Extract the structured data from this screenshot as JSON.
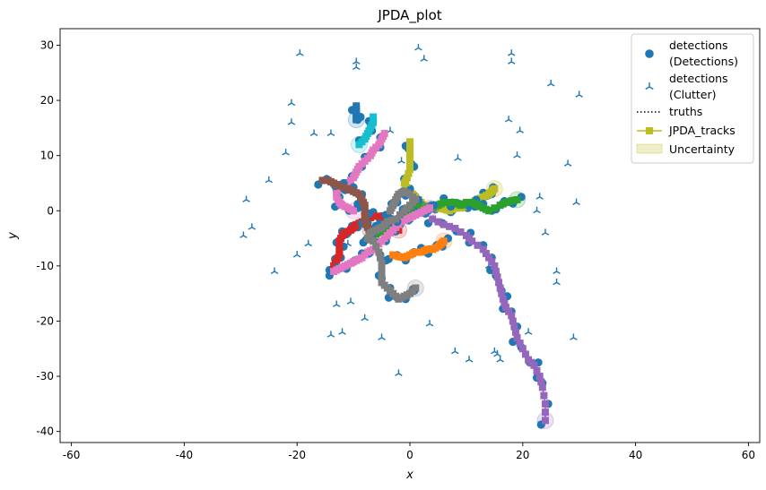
{
  "chart_data": {
    "type": "scatter",
    "title": "JPDA_plot",
    "xlabel": "x",
    "ylabel": "y",
    "xlim": [
      -62,
      62
    ],
    "ylim": [
      -42,
      33
    ],
    "xticks": [
      -60,
      -40,
      -20,
      0,
      20,
      40,
      60
    ],
    "yticks": [
      -40,
      -30,
      -20,
      -10,
      0,
      10,
      20,
      30
    ],
    "grid": false,
    "legend": {
      "placement": "top-right",
      "entries": [
        {
          "label_line1": "detections",
          "label_line2": "(Detections)",
          "marker": "circle",
          "color": "#1f77b4"
        },
        {
          "label_line1": "detections",
          "label_line2": "(Clutter)",
          "marker": "tri-up",
          "color": "#1f77b4"
        },
        {
          "label_line1": "truths",
          "marker": "dotted-line",
          "color": "#000000"
        },
        {
          "label_line1": "JPDA_tracks",
          "marker": "square-line",
          "color": "#bcbd22"
        },
        {
          "label_line1": "Uncertainty",
          "marker": "patch",
          "color": "#bcbd22"
        }
      ]
    },
    "clutter": [
      [
        -19.5,
        28.5
      ],
      [
        -9.5,
        27
      ],
      [
        -9.5,
        26
      ],
      [
        1.5,
        29.5
      ],
      [
        2.5,
        27.5
      ],
      [
        18,
        28.5
      ],
      [
        18,
        27
      ],
      [
        25,
        23
      ],
      [
        30,
        21
      ],
      [
        -21,
        19.5
      ],
      [
        -21,
        16
      ],
      [
        -17,
        14
      ],
      [
        -14,
        14
      ],
      [
        -22,
        10.5
      ],
      [
        -25,
        5.5
      ],
      [
        -29,
        2
      ],
      [
        -28,
        -3
      ],
      [
        -29.5,
        -4.5
      ],
      [
        -20,
        -8
      ],
      [
        -18,
        -6
      ],
      [
        -24,
        -11
      ],
      [
        -11,
        -6
      ],
      [
        -13,
        -17
      ],
      [
        -8,
        -19.5
      ],
      [
        -10.5,
        -16.5
      ],
      [
        -14,
        -22.5
      ],
      [
        -12,
        -22
      ],
      [
        -5,
        -23
      ],
      [
        -2,
        -29.5
      ],
      [
        3.5,
        -20.5
      ],
      [
        8,
        -25.5
      ],
      [
        10.5,
        -27
      ],
      [
        15,
        -25.5
      ],
      [
        15.5,
        -26
      ],
      [
        16,
        -27
      ],
      [
        29,
        -23
      ],
      [
        17.5,
        16.5
      ],
      [
        19.5,
        14.5
      ],
      [
        19,
        10
      ],
      [
        23,
        2.5
      ],
      [
        22.5,
        0
      ],
      [
        24,
        -4
      ],
      [
        26,
        -11
      ],
      [
        26,
        -13
      ],
      [
        29.5,
        1.5
      ],
      [
        28,
        8.5
      ],
      [
        8.5,
        9.5
      ],
      [
        -3.5,
        14.5
      ],
      [
        -1.5,
        9
      ],
      [
        14,
        -10
      ],
      [
        21,
        -22
      ]
    ],
    "tracks": [
      {
        "color": "#9467bd",
        "points": [
          [
            4,
            -1.5
          ],
          [
            6,
            -2.5
          ],
          [
            8,
            -3.2
          ],
          [
            10,
            -4.5
          ],
          [
            11,
            -5.5
          ],
          [
            13,
            -7
          ],
          [
            14,
            -8.5
          ],
          [
            15,
            -10
          ],
          [
            15.5,
            -12
          ],
          [
            16,
            -14
          ],
          [
            16.5,
            -16
          ],
          [
            17,
            -17.5
          ],
          [
            18,
            -19
          ],
          [
            18.5,
            -21
          ],
          [
            19,
            -23
          ],
          [
            20,
            -25
          ],
          [
            21,
            -27
          ],
          [
            22,
            -28
          ],
          [
            23,
            -30
          ],
          [
            23.5,
            -32
          ],
          [
            24,
            -35
          ],
          [
            24,
            -38
          ]
        ]
      },
      {
        "color": "#bcbd22",
        "points": [
          [
            0,
            12.5
          ],
          [
            0,
            11
          ],
          [
            0,
            9
          ],
          [
            0,
            7.5
          ],
          [
            -0.5,
            6
          ],
          [
            -1,
            5
          ],
          [
            -0.5,
            4
          ],
          [
            0,
            3.5
          ],
          [
            1,
            2.5
          ],
          [
            2,
            1.5
          ],
          [
            3,
            0.5
          ],
          [
            5,
            0.5
          ],
          [
            6,
            0.3
          ],
          [
            7,
            0
          ],
          [
            8,
            0.5
          ],
          [
            9,
            0.5
          ],
          [
            10,
            1
          ],
          [
            11,
            1.5
          ],
          [
            12,
            2
          ],
          [
            13,
            2.5
          ],
          [
            14,
            3
          ],
          [
            14.5,
            3.5
          ],
          [
            15,
            4
          ]
        ]
      },
      {
        "color": "#2ca02c",
        "points": [
          [
            -7,
            -4.5
          ],
          [
            -5,
            -4
          ],
          [
            -4,
            -3
          ],
          [
            -3,
            -2
          ],
          [
            -2,
            -1.5
          ],
          [
            -1,
            -1
          ],
          [
            0,
            0
          ],
          [
            1,
            0.5
          ],
          [
            2,
            1
          ],
          [
            3,
            0.5
          ],
          [
            4,
            0.5
          ],
          [
            5,
            1
          ],
          [
            6,
            1.5
          ],
          [
            7,
            1.5
          ],
          [
            8,
            1.5
          ],
          [
            9,
            1
          ],
          [
            10,
            1.5
          ],
          [
            11,
            1.5
          ],
          [
            12,
            1
          ],
          [
            13,
            0.5
          ],
          [
            14,
            0
          ],
          [
            16,
            1
          ],
          [
            17,
            1.5
          ],
          [
            18,
            1.8
          ],
          [
            19,
            2
          ]
        ]
      },
      {
        "color": "#ff7f0e",
        "points": [
          [
            -3,
            -8
          ],
          [
            -2,
            -8.3
          ],
          [
            -1,
            -8.5
          ],
          [
            0,
            -8
          ],
          [
            1,
            -7.5
          ],
          [
            2,
            -7.5
          ],
          [
            3,
            -7
          ],
          [
            4,
            -7
          ],
          [
            5,
            -6.5
          ],
          [
            5.5,
            -6
          ],
          [
            6,
            -5.5
          ]
        ]
      },
      {
        "color": "#d62728",
        "points": [
          [
            -13.5,
            -10
          ],
          [
            -13,
            -9
          ],
          [
            -12.5,
            -8
          ],
          [
            -12.5,
            -7
          ],
          [
            -12.5,
            -5.5
          ],
          [
            -12,
            -4.5
          ],
          [
            -11.5,
            -4
          ],
          [
            -10.5,
            -3.5
          ],
          [
            -10,
            -3
          ],
          [
            -9.5,
            -2.5
          ],
          [
            -8.5,
            -2
          ],
          [
            -7.5,
            -1.5
          ],
          [
            -6.5,
            -1
          ],
          [
            -5.5,
            -1
          ],
          [
            -4.5,
            -1
          ],
          [
            -3.5,
            -1.5
          ],
          [
            -3,
            -2.5
          ],
          [
            -2.5,
            -3
          ],
          [
            -2,
            -3.5
          ]
        ]
      },
      {
        "color": "#e377c2",
        "points": [
          [
            -13.5,
            -11
          ],
          [
            -12.5,
            -10.5
          ],
          [
            -11.5,
            -10
          ],
          [
            -10.5,
            -9.5
          ],
          [
            -9.5,
            -9
          ],
          [
            -8.5,
            -8.5
          ],
          [
            -7.5,
            -7.5
          ],
          [
            -6.5,
            -7
          ],
          [
            -5.5,
            -6
          ],
          [
            -4.5,
            -5
          ],
          [
            -3.5,
            -4
          ],
          [
            -2.5,
            -3
          ],
          [
            -1.5,
            -2
          ],
          [
            -0.5,
            -1.5
          ],
          [
            0.5,
            -1
          ],
          [
            1.5,
            -0.5
          ],
          [
            2.5,
            0
          ],
          [
            3.5,
            0.5
          ]
        ]
      },
      {
        "color": "#e377c2",
        "points": [
          [
            -4.5,
            14
          ],
          [
            -5,
            13
          ],
          [
            -5.5,
            12
          ],
          [
            -6.5,
            11
          ],
          [
            -7,
            10
          ],
          [
            -8,
            9
          ],
          [
            -9,
            8
          ],
          [
            -9.5,
            7
          ],
          [
            -10,
            6
          ],
          [
            -11,
            5
          ],
          [
            -12,
            4.5
          ],
          [
            -12.5,
            4
          ],
          [
            -13,
            3.5
          ],
          [
            -13,
            2.5
          ],
          [
            -12.5,
            1.5
          ],
          [
            -12,
            1
          ],
          [
            -11,
            0.5
          ],
          [
            -10,
            0
          ]
        ]
      },
      {
        "color": "#8c564b",
        "points": [
          [
            -15.5,
            5.5
          ],
          [
            -14.5,
            5.5
          ],
          [
            -13.5,
            5
          ],
          [
            -12.5,
            4.5
          ],
          [
            -11,
            4
          ],
          [
            -10,
            3.5
          ],
          [
            -9,
            3
          ],
          [
            -8.5,
            2
          ],
          [
            -8,
            1
          ],
          [
            -8,
            0
          ],
          [
            -8,
            -1
          ],
          [
            -8,
            -2
          ],
          [
            -7.5,
            -3
          ],
          [
            -7,
            -3.5
          ]
        ]
      },
      {
        "color": "#17becf",
        "points": [
          [
            -6.5,
            17
          ],
          [
            -6.5,
            16
          ],
          [
            -7,
            15
          ],
          [
            -7.5,
            14
          ],
          [
            -8,
            13
          ],
          [
            -9,
            12
          ]
        ]
      },
      {
        "color": "#1f77b4",
        "points": [
          [
            -9.5,
            19
          ],
          [
            -9.5,
            18
          ],
          [
            -9.5,
            17
          ],
          [
            -9.5,
            16.5
          ]
        ]
      },
      {
        "color": "#7f7f7f",
        "points": [
          [
            -3.5,
            0
          ],
          [
            -3,
            1
          ],
          [
            -2.5,
            2
          ],
          [
            -2,
            3
          ],
          [
            -1,
            3.5
          ],
          [
            0,
            3
          ],
          [
            1,
            2
          ],
          [
            0,
            1
          ],
          [
            -1,
            0
          ],
          [
            -2.5,
            -1.5
          ],
          [
            -4,
            -2
          ],
          [
            -5,
            -3
          ],
          [
            -6,
            -3.5
          ],
          [
            -7,
            -4
          ],
          [
            -7.5,
            -5
          ],
          [
            -6.5,
            -5.5
          ],
          [
            -5.5,
            -7.5
          ],
          [
            -5,
            -9.5
          ],
          [
            -5,
            -11.5
          ],
          [
            -5,
            -13
          ],
          [
            -4,
            -14
          ],
          [
            -3,
            -15
          ],
          [
            -2,
            -16
          ],
          [
            -1,
            -15.5
          ],
          [
            0,
            -15
          ],
          [
            1,
            -14
          ]
        ]
      }
    ]
  }
}
